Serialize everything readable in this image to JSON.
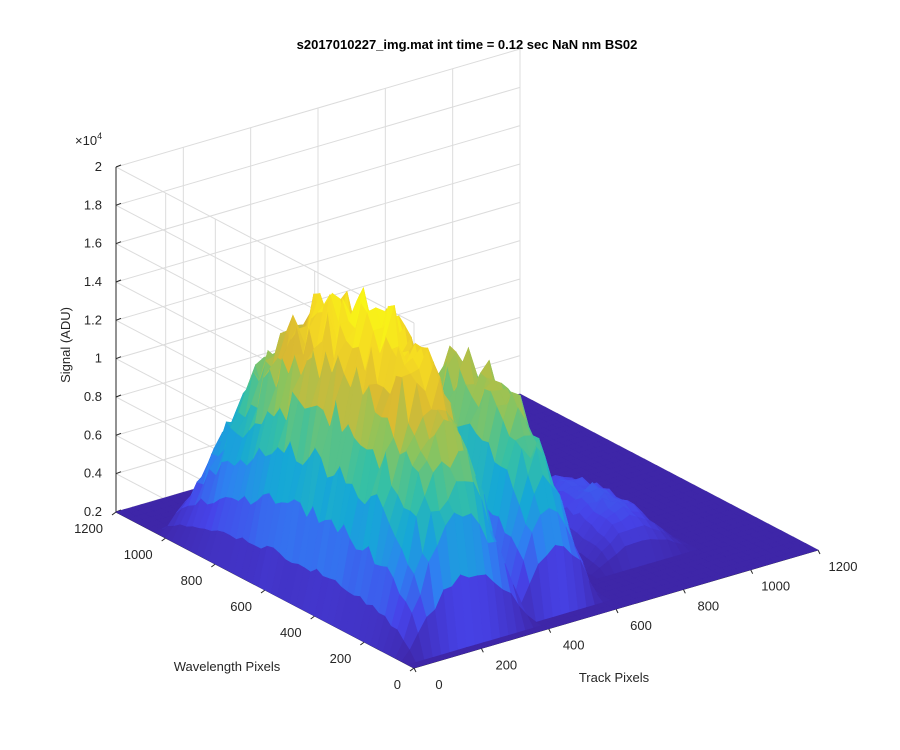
{
  "chart_data": {
    "type": "surface",
    "title": "s2017010227_img.mat int time = 0.12 sec  NaN nm BS02",
    "xlabel": "Track Pixels",
    "ylabel": "Wavelength Pixels",
    "zlabel": "Signal (ADU)",
    "z_multiplier": "×10^4",
    "xlim": [
      0,
      1200
    ],
    "ylim": [
      0,
      1200
    ],
    "zlim": [
      0.2,
      2
    ],
    "x_ticks": [
      0,
      200,
      400,
      600,
      800,
      1000,
      1200
    ],
    "y_ticks": [
      0,
      200,
      400,
      600,
      800,
      1000,
      1200
    ],
    "z_ticks": [
      0.2,
      0.4,
      0.6,
      0.8,
      1,
      1.2,
      1.4,
      1.6,
      1.8,
      2
    ],
    "z_tick_labels": [
      "0.2",
      "0.4",
      "0.6",
      "0.8",
      "1",
      "1.2",
      "1.4",
      "1.6",
      "1.8",
      "2"
    ],
    "colormap": [
      "#3e26a8",
      "#4743e9",
      "#2f80f1",
      "#16a8d6",
      "#36c0a5",
      "#8cc45d",
      "#d9b932",
      "#f5d923",
      "#f9fb14"
    ],
    "grid": true,
    "peaks": [
      {
        "track_center": 200,
        "track_halfwidth": 200,
        "wavelength_range": [
          40,
          1050
        ],
        "peak_value": 1.65
      },
      {
        "track_center": 480,
        "track_halfwidth": 130,
        "wavelength_range": [
          60,
          900
        ],
        "peak_value": 1.25
      },
      {
        "track_center": 820,
        "track_halfwidth": 150,
        "wavelength_range": [
          180,
          700
        ],
        "peak_value": 0.45
      }
    ],
    "floor_value": 0.2
  }
}
